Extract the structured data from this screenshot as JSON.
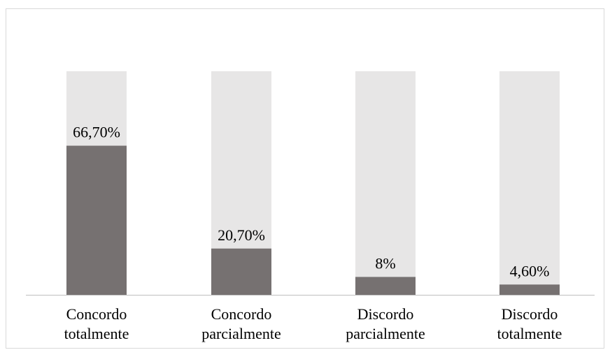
{
  "chart_data": {
    "type": "bar",
    "stacked_to_total": true,
    "categories": [
      [
        "Concordo",
        "totalmente"
      ],
      [
        "Concordo",
        "parcialmente"
      ],
      [
        "Discordo",
        "parcialmente"
      ],
      [
        "Discordo",
        "totalmente"
      ]
    ],
    "values": [
      66.7,
      20.7,
      8,
      4.6
    ],
    "data_labels": [
      "66,70%",
      "20,70%",
      "8%",
      "4,60%"
    ],
    "ylim": [
      0,
      100
    ],
    "grid": false,
    "legend": "none",
    "colors": {
      "value": "#767171",
      "remainder": "#e7e6e6",
      "axis": "#bfbfbf",
      "frame": "#d9d9d9"
    }
  }
}
